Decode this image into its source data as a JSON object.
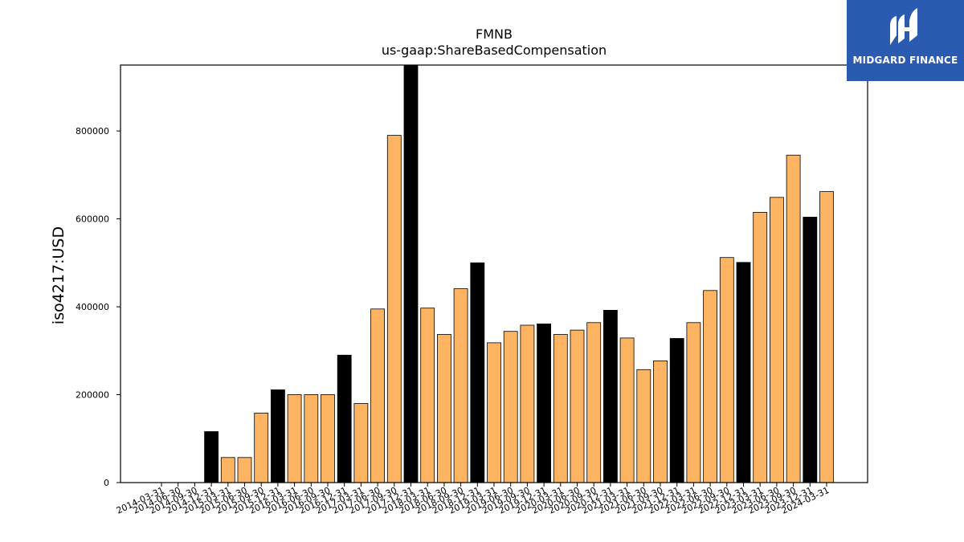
{
  "chart_data": {
    "type": "bar",
    "title": "FMNB",
    "subtitle": "us-gaap:ShareBasedCompensation",
    "xlabel": "",
    "ylabel": "iso4217:USD",
    "ylim": [
      0,
      950000
    ],
    "yticks": [
      0,
      200000,
      400000,
      600000,
      800000
    ],
    "ytick_labels": [
      "0",
      "200000",
      "400000",
      "600000",
      "800000"
    ],
    "grid": false,
    "categories": [
      "2014-03-31",
      "2014-06-30",
      "2014-09-30",
      "2014-12-31",
      "2015-03-31",
      "2015-06-30",
      "2015-09-30",
      "2015-12-31",
      "2016-03-31",
      "2016-06-30",
      "2016-09-30",
      "2016-12-31",
      "2017-03-31",
      "2017-06-30",
      "2017-09-30",
      "2017-12-31",
      "2018-03-31",
      "2018-06-30",
      "2018-09-30",
      "2018-12-31",
      "2019-03-31",
      "2019-06-30",
      "2019-09-30",
      "2019-12-31",
      "2020-03-31",
      "2020-06-30",
      "2020-09-30",
      "2020-12-31",
      "2021-03-31",
      "2021-06-30",
      "2021-09-30",
      "2021-12-31",
      "2022-03-31",
      "2022-06-30",
      "2022-09-30",
      "2022-12-31",
      "2023-03-31",
      "2023-06-30",
      "2023-09-30",
      "2023-12-31",
      "2024-03-31"
    ],
    "values": [
      0,
      0,
      0,
      116000,
      57000,
      57000,
      158000,
      211000,
      200000,
      200000,
      200000,
      290000,
      180000,
      395000,
      790000,
      950000,
      397000,
      337000,
      441000,
      500000,
      318000,
      344000,
      358000,
      361000,
      337000,
      347000,
      364000,
      392000,
      329000,
      257000,
      277000,
      328000,
      364000,
      437000,
      512000,
      501000,
      615000,
      649000,
      745000,
      604000,
      662000
    ],
    "colors": {
      "default": "#fdb462",
      "fiscal_year_end": "#000000",
      "edge": "#000000"
    }
  },
  "logo": {
    "text": "MIDGARD FINANCE",
    "background": "#2b5bb0",
    "icon": "midgard-logo-icon"
  }
}
